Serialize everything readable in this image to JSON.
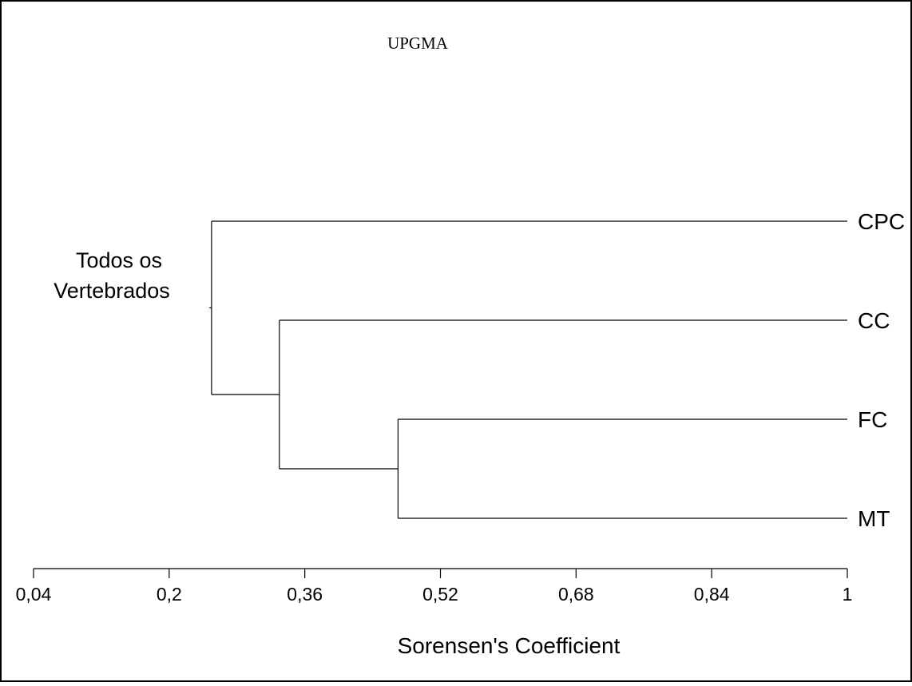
{
  "chart_data": {
    "type": "dendrogram",
    "title": "UPGMA",
    "group_label": [
      "Todos os",
      "Vertebrados"
    ],
    "xlabel": "Sorensen's Coefficient",
    "xlim": [
      0.04,
      1
    ],
    "xticks": [
      0.04,
      0.2,
      0.36,
      0.52,
      0.68,
      0.84,
      1
    ],
    "xtick_labels": [
      "0,04",
      "0,2",
      "0,36",
      "0,52",
      "0,68",
      "0,84",
      "1"
    ],
    "leaves": [
      "CPC",
      "CC",
      "FC",
      "MT"
    ],
    "merges": [
      {
        "left": "FC",
        "right": "MT",
        "similarity": 0.47
      },
      {
        "left": "CC",
        "right": "FC+MT",
        "similarity": 0.33
      },
      {
        "left": "CPC",
        "right": "CC+FC+MT",
        "similarity": 0.25
      }
    ],
    "colors": {
      "line": "#000000",
      "background": "#ffffff",
      "border": "#000000"
    }
  }
}
